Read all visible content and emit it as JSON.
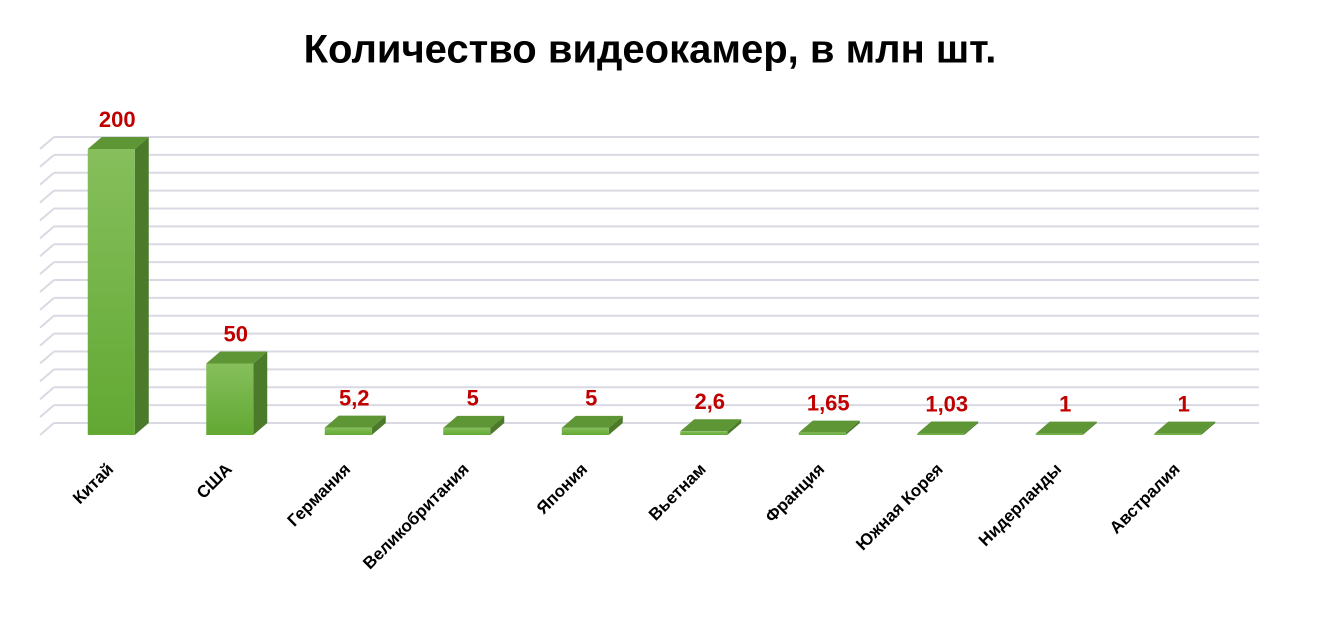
{
  "chart_data": {
    "type": "bar",
    "title": "Количество видеокамер, в млн шт.",
    "categories": [
      "Китай",
      "США",
      "Германия",
      "Великобритания",
      "Япония",
      "Вьетнам",
      "Франция",
      "Южная Корея",
      "Нидерланды",
      "Австралия"
    ],
    "values": [
      200,
      50,
      5.2,
      5,
      5,
      2.6,
      1.65,
      1.03,
      1,
      1
    ],
    "value_labels": [
      "200",
      "50",
      "5,2",
      "5",
      "5",
      "2,6",
      "1,65",
      "1,03",
      "1",
      "1"
    ],
    "color": "#72b343",
    "label_color": "#c00000",
    "ylim": [
      0,
      200
    ],
    "yticks": [
      0,
      12.5,
      25,
      37.5,
      50,
      62.5,
      75,
      87.5,
      100,
      112.5,
      125,
      137.5,
      150,
      162.5,
      175,
      187.5,
      200
    ],
    "grid": true
  }
}
